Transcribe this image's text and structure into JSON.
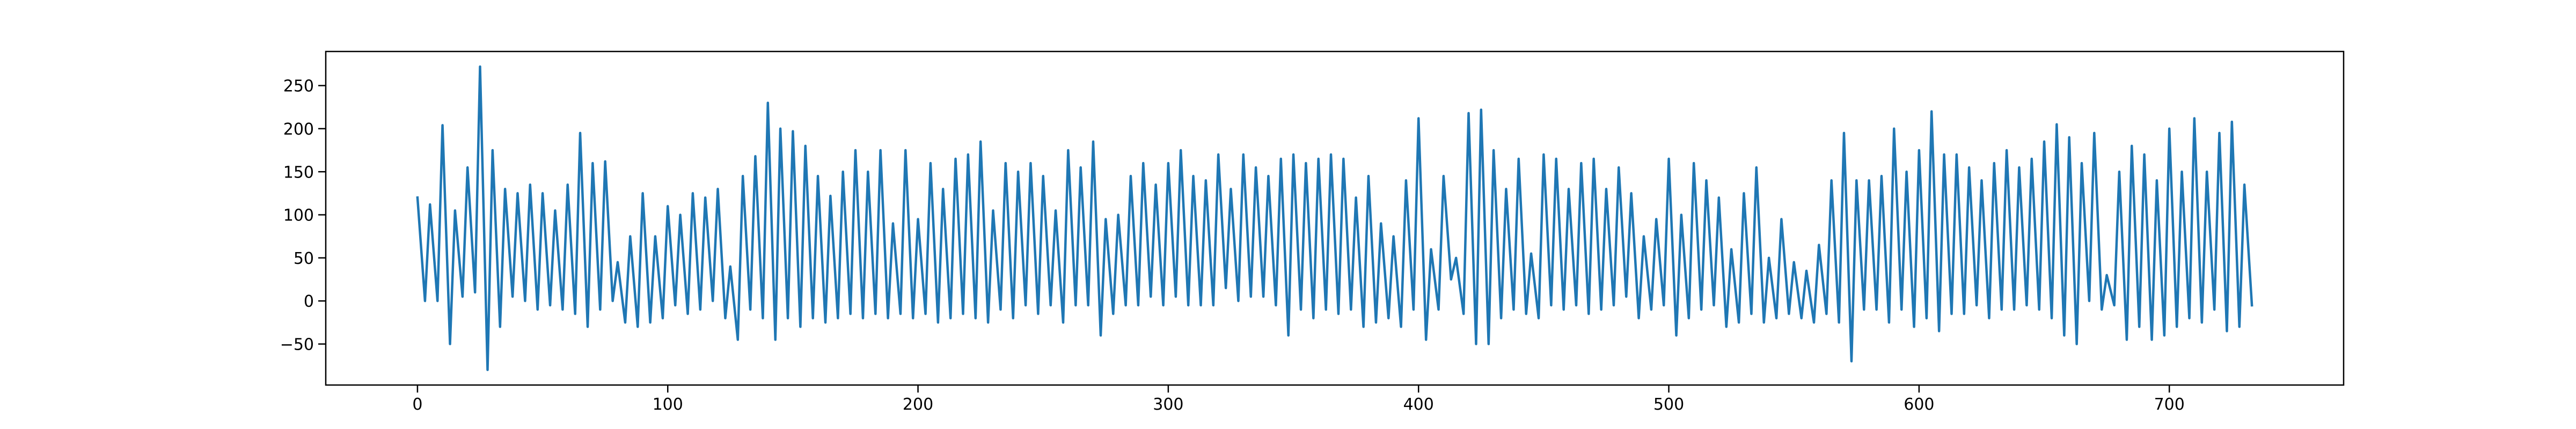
{
  "chart_data": {
    "type": "line",
    "x": [
      0,
      3,
      5,
      8,
      10,
      13,
      15,
      18,
      20,
      23,
      25,
      28,
      30,
      33,
      35,
      38,
      40,
      43,
      45,
      48,
      50,
      53,
      55,
      58,
      60,
      63,
      65,
      68,
      70,
      73,
      75,
      78,
      80,
      83,
      85,
      88,
      90,
      93,
      95,
      98,
      100,
      103,
      105,
      108,
      110,
      113,
      115,
      118,
      120,
      123,
      125,
      128,
      130,
      133,
      135,
      138,
      140,
      143,
      145,
      148,
      150,
      153,
      155,
      158,
      160,
      163,
      165,
      168,
      170,
      173,
      175,
      178,
      180,
      183,
      185,
      188,
      190,
      193,
      195,
      198,
      200,
      203,
      205,
      208,
      210,
      213,
      215,
      218,
      220,
      223,
      225,
      228,
      230,
      233,
      235,
      238,
      240,
      243,
      245,
      248,
      250,
      253,
      255,
      258,
      260,
      263,
      265,
      268,
      270,
      273,
      275,
      278,
      280,
      283,
      285,
      288,
      290,
      293,
      295,
      298,
      300,
      303,
      305,
      308,
      310,
      313,
      315,
      318,
      320,
      323,
      325,
      328,
      330,
      333,
      335,
      338,
      340,
      343,
      345,
      348,
      350,
      353,
      355,
      358,
      360,
      363,
      365,
      368,
      370,
      373,
      375,
      378,
      380,
      383,
      385,
      388,
      390,
      393,
      395,
      398,
      400,
      403,
      405,
      408,
      410,
      413,
      415,
      418,
      420,
      423,
      425,
      428,
      430,
      433,
      435,
      438,
      440,
      443,
      445,
      448,
      450,
      453,
      455,
      458,
      460,
      463,
      465,
      468,
      470,
      473,
      475,
      478,
      480,
      483,
      485,
      488,
      490,
      493,
      495,
      498,
      500,
      503,
      505,
      508,
      510,
      513,
      515,
      518,
      520,
      523,
      525,
      528,
      530,
      533,
      535,
      538,
      540,
      543,
      545,
      548,
      550,
      553,
      555,
      558,
      560,
      563,
      565,
      568,
      570,
      573,
      575,
      578,
      580,
      583,
      585,
      588,
      590,
      593,
      595,
      598,
      600,
      603,
      605,
      608,
      610,
      613,
      615,
      618,
      620,
      623,
      625,
      628,
      630,
      633,
      635,
      638,
      640,
      643,
      645,
      648,
      650,
      653,
      655,
      658,
      660,
      663,
      665,
      668,
      670,
      673,
      675,
      678,
      680,
      683,
      685,
      688,
      690,
      693,
      695,
      698,
      700,
      703,
      705,
      708,
      710,
      713,
      715,
      718,
      720,
      723,
      725,
      728,
      730,
      733
    ],
    "values": [
      120,
      0,
      112,
      0,
      204,
      -50,
      105,
      5,
      155,
      10,
      272,
      -80,
      175,
      -30,
      130,
      5,
      125,
      0,
      135,
      -10,
      125,
      -5,
      105,
      -10,
      135,
      -15,
      195,
      -30,
      160,
      -10,
      162,
      0,
      45,
      -25,
      75,
      -30,
      125,
      -25,
      75,
      -20,
      110,
      -5,
      100,
      -15,
      125,
      -10,
      120,
      0,
      130,
      -20,
      40,
      -45,
      145,
      -10,
      168,
      -20,
      230,
      -45,
      200,
      -20,
      197,
      -30,
      180,
      -20,
      145,
      -25,
      122,
      -20,
      150,
      -15,
      175,
      -20,
      150,
      -15,
      175,
      -20,
      90,
      -15,
      175,
      -20,
      95,
      -15,
      160,
      -25,
      130,
      -20,
      165,
      -15,
      170,
      -20,
      185,
      -25,
      105,
      -10,
      160,
      -20,
      150,
      -5,
      160,
      -15,
      145,
      -5,
      105,
      -25,
      175,
      -5,
      155,
      -5,
      185,
      -40,
      95,
      -15,
      100,
      -5,
      145,
      -5,
      160,
      5,
      135,
      -5,
      160,
      5,
      175,
      -5,
      145,
      -5,
      140,
      -5,
      170,
      15,
      130,
      0,
      170,
      5,
      155,
      5,
      145,
      -5,
      165,
      -40,
      170,
      -10,
      160,
      -20,
      165,
      -10,
      170,
      -15,
      165,
      -10,
      120,
      -30,
      145,
      -25,
      90,
      -20,
      75,
      -30,
      140,
      -10,
      212,
      -45,
      60,
      -10,
      145,
      25,
      50,
      -15,
      218,
      -50,
      222,
      -50,
      175,
      -20,
      130,
      -10,
      165,
      -15,
      55,
      -20,
      170,
      -5,
      165,
      -10,
      130,
      -5,
      160,
      -15,
      165,
      -10,
      130,
      -5,
      155,
      5,
      125,
      -20,
      75,
      -10,
      95,
      -5,
      165,
      -40,
      100,
      -20,
      160,
      -10,
      140,
      -5,
      120,
      -30,
      60,
      -25,
      125,
      -15,
      155,
      -25,
      50,
      -20,
      95,
      -15,
      45,
      -20,
      35,
      -25,
      65,
      -15,
      140,
      -25,
      195,
      -70,
      140,
      -10,
      140,
      -10,
      145,
      -25,
      200,
      -10,
      150,
      -30,
      175,
      -20,
      220,
      -35,
      170,
      -15,
      170,
      -15,
      155,
      -5,
      140,
      -20,
      160,
      -10,
      175,
      -10,
      155,
      -5,
      165,
      -10,
      185,
      -20,
      205,
      -40,
      190,
      -50,
      160,
      0,
      195,
      -10,
      30,
      -5,
      150,
      -45,
      180,
      -30,
      170,
      -45,
      140,
      -40,
      200,
      -30,
      150,
      -20,
      212,
      -25,
      150,
      -10,
      195,
      -35,
      208,
      -30,
      135,
      -5
    ],
    "color": "#1f77b4",
    "xlim": [
      -36.65,
      769.65
    ],
    "ylim": [
      -97.6,
      289.6
    ],
    "xticks": [
      0,
      100,
      200,
      300,
      400,
      500,
      600,
      700
    ],
    "yticks": [
      {
        "value": -50,
        "label": "−50"
      },
      0,
      50,
      100,
      150,
      200,
      250
    ]
  }
}
